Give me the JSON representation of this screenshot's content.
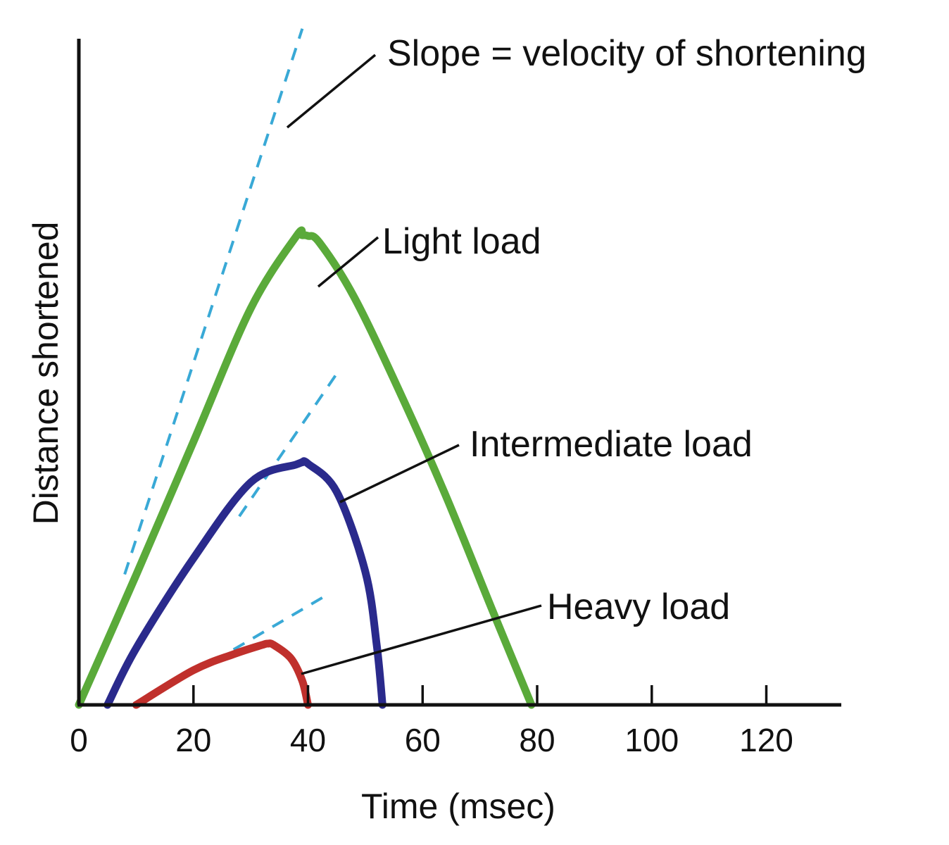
{
  "chart_data": {
    "type": "line",
    "title": "",
    "xlabel": "Time (msec)",
    "ylabel": "Distance shortened",
    "xlim": [
      0,
      130
    ],
    "ylim": [
      0,
      100
    ],
    "x_ticks": [
      0,
      20,
      40,
      60,
      80,
      100,
      120
    ],
    "y_ticks_shown": false,
    "grid": false,
    "colors": {
      "axis": "#111111",
      "tangent": "#39a9d6",
      "light": "#5aaa3a",
      "intermediate": "#2a2a8c",
      "heavy": "#c0302c"
    },
    "series": [
      {
        "name": "Light load",
        "color_key": "light",
        "x": [
          0,
          10,
          20,
          30,
          38,
          39,
          40,
          42,
          48,
          56,
          64,
          72,
          79
        ],
        "y": [
          0,
          19.5,
          39.5,
          59.5,
          70.4,
          70.5,
          70.4,
          69.4,
          61.3,
          47,
          31.5,
          14.6,
          0
        ]
      },
      {
        "name": "Intermediate load",
        "color_key": "intermediate",
        "x": [
          5,
          10,
          20,
          30,
          38,
          39,
          40,
          45,
          50,
          52,
          53
        ],
        "y": [
          0,
          8.5,
          22,
          33.4,
          36.1,
          36.4,
          36.2,
          32,
          20,
          9,
          0
        ]
      },
      {
        "name": "Heavy load",
        "color_key": "heavy",
        "x": [
          10,
          20,
          27,
          32,
          33,
          34,
          37,
          39,
          40
        ],
        "y": [
          0,
          5.2,
          7.6,
          9,
          9.2,
          9,
          7,
          3.6,
          0
        ]
      }
    ],
    "tangents": [
      {
        "name": "Light load slope",
        "x": [
          8,
          39
        ],
        "y": [
          19.6,
          101.5
        ]
      },
      {
        "name": "Intermediate load slope",
        "x": [
          28,
          45
        ],
        "y": [
          28.3,
          49.7
        ]
      },
      {
        "name": "Heavy load slope",
        "x": [
          27,
          43.5
        ],
        "y": [
          8.3,
          16.6
        ]
      }
    ],
    "annotations": [
      {
        "id": "slope",
        "text": "Slope = velocity of shortening",
        "target": {
          "x": 36.5,
          "y": 92.5
        }
      },
      {
        "id": "light",
        "text": "Light load",
        "target": {
          "x": 41.5,
          "y": 69.5
        }
      },
      {
        "id": "intermediate",
        "text": "Intermediate load",
        "target": {
          "x": 45.5,
          "y": 33.3
        }
      },
      {
        "id": "heavy",
        "text": "Heavy load",
        "target": {
          "x": 39.5,
          "y": 5.4
        }
      }
    ]
  }
}
